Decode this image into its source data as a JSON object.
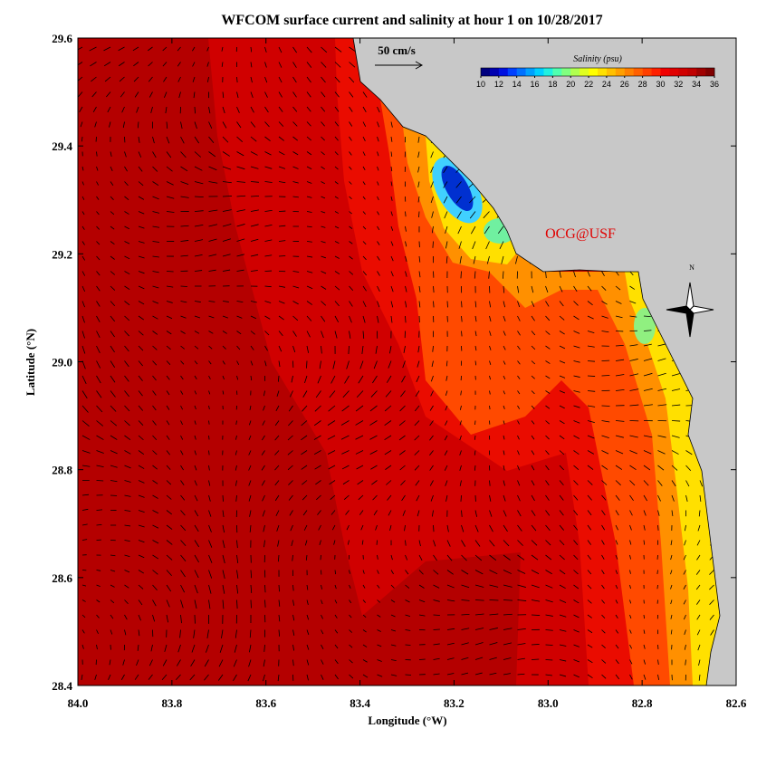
{
  "chart_data": {
    "type": "map",
    "title": "WFCOM surface current and salinity at hour 1 on 10/28/2017",
    "x_label": "Longitude (°W)",
    "y_label": "Latitude (°N)",
    "xlim": [
      84.0,
      82.6
    ],
    "ylim": [
      28.4,
      29.6
    ],
    "xticks": [
      {
        "value": 84,
        "label": "84.0"
      },
      83.8,
      83.6,
      83.4,
      83.2,
      {
        "value": 83,
        "label": "83.0"
      },
      82.8,
      82.6
    ],
    "yticks": [
      28.4,
      28.6,
      28.8,
      {
        "value": 29,
        "label": "29.0"
      },
      29.2,
      29.4,
      29.6
    ],
    "colorbar": {
      "label": "Salinity (psu)",
      "range": [
        10,
        36
      ],
      "ticks": [
        10,
        12,
        14,
        16,
        18,
        20,
        22,
        24,
        26,
        28,
        30,
        32,
        34,
        36
      ],
      "colors": [
        "#00007f",
        "#0000b0",
        "#0010e0",
        "#0040ff",
        "#0070ff",
        "#00a0ff",
        "#00d0ff",
        "#20f0e0",
        "#50ffb0",
        "#80ff80",
        "#b0ff50",
        "#e0ff20",
        "#ffff00",
        "#ffe000",
        "#ffc000",
        "#ffa000",
        "#ff8000",
        "#ff6000",
        "#ff4000",
        "#ff2000",
        "#f00000",
        "#e00000",
        "#d00000",
        "#c00000",
        "#a00000",
        "#800000"
      ]
    },
    "scale_label": "50 cm/s",
    "annotation": "OCG@USF",
    "compass_label": "N"
  }
}
